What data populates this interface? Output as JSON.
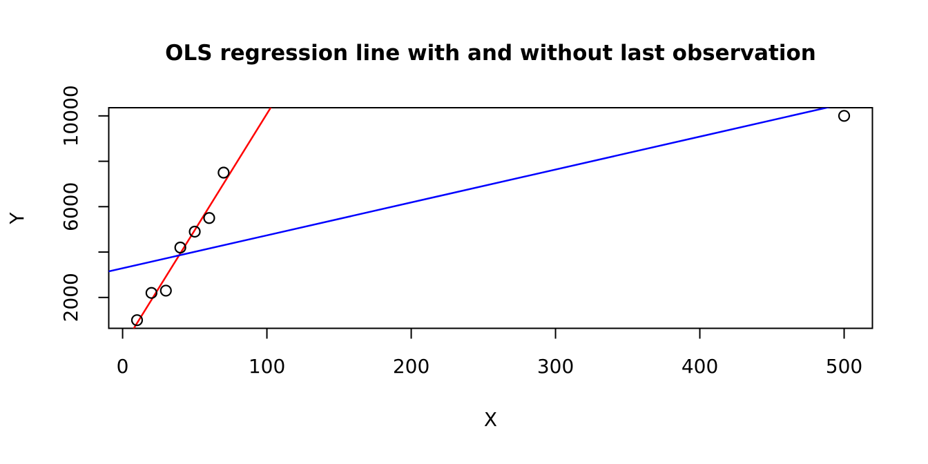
{
  "chart_data": {
    "type": "scatter",
    "title": "OLS regression line with and without last observation",
    "xlabel": "X",
    "ylabel": "Y",
    "xlim": [
      -9.6,
      519.6
    ],
    "ylim": [
      640,
      10360
    ],
    "grid": false,
    "legend": "none",
    "x_ticks": [
      {
        "value": 0,
        "label": "0"
      },
      {
        "value": 100,
        "label": "100"
      },
      {
        "value": 200,
        "label": "200"
      },
      {
        "value": 300,
        "label": "300"
      },
      {
        "value": 400,
        "label": "400"
      },
      {
        "value": 500,
        "label": "500"
      }
    ],
    "y_ticks": [
      {
        "value": 2000,
        "label": "2000"
      },
      {
        "value": 4000,
        "label": ""
      },
      {
        "value": 6000,
        "label": "6000"
      },
      {
        "value": 8000,
        "label": ""
      },
      {
        "value": 10000,
        "label": "10000"
      }
    ],
    "points": [
      {
        "x": 10,
        "y": 1000
      },
      {
        "x": 20,
        "y": 2200
      },
      {
        "x": 30,
        "y": 2300
      },
      {
        "x": 40,
        "y": 4200
      },
      {
        "x": 50,
        "y": 4900
      },
      {
        "x": 60,
        "y": 5500
      },
      {
        "x": 70,
        "y": 7500
      },
      {
        "x": 500,
        "y": 10000
      }
    ],
    "marker": {
      "shape": "open-circle",
      "color": "#000000"
    },
    "lines": [
      {
        "name": "ols-line-without-last-observation",
        "slope": 102.5,
        "intercept": -157.1,
        "color": "#FF0000"
      },
      {
        "name": "ols-line-with-last-observation",
        "slope": 14.5,
        "intercept": 3286.4,
        "color": "#0000FF"
      }
    ],
    "colors": {
      "axis": "#000000",
      "background": "#FFFFFF"
    }
  }
}
